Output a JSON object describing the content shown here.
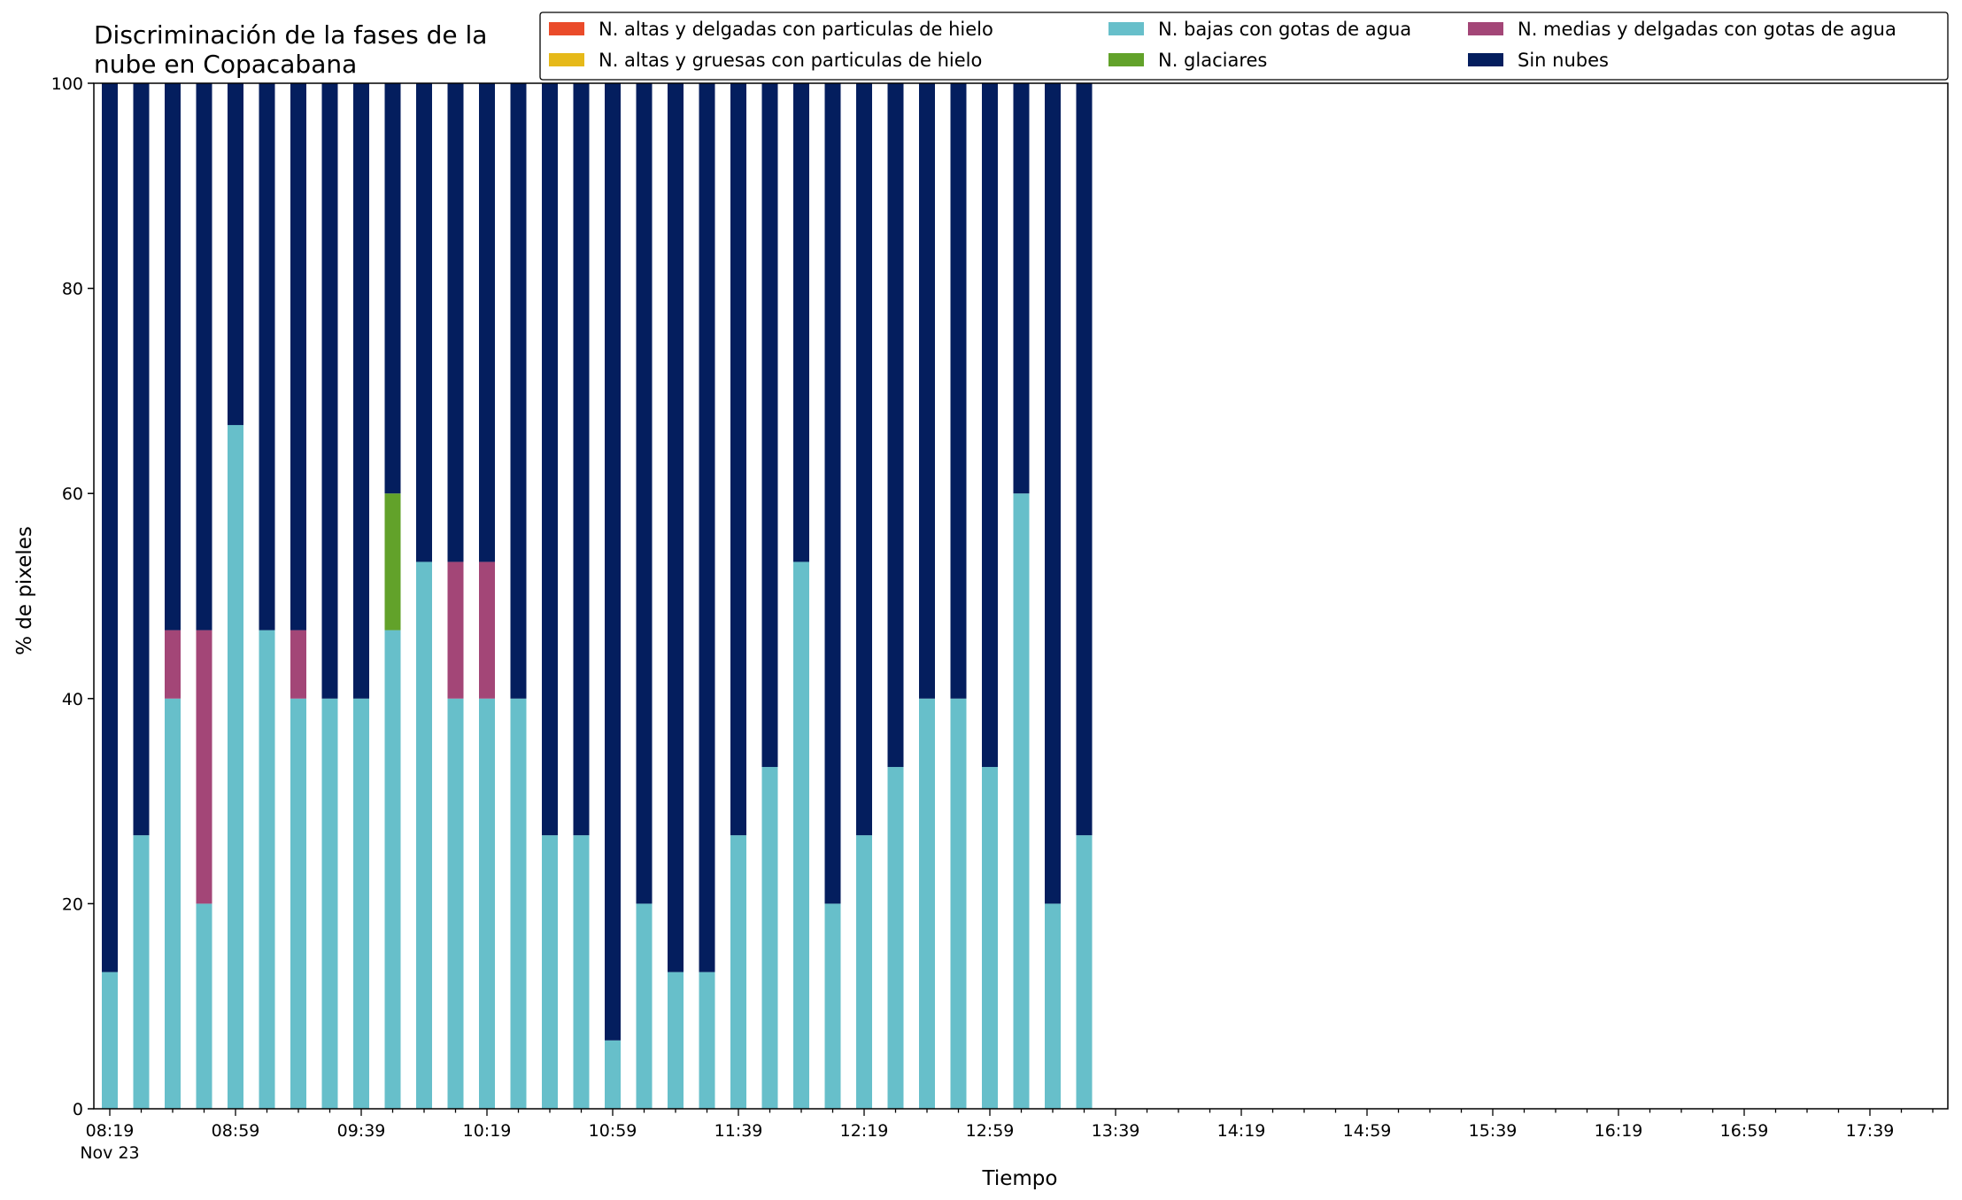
{
  "chart_data": {
    "type": "bar",
    "stacked": true,
    "title_lines": [
      "Discriminación de la fases de la",
      "nube en Copacabana"
    ],
    "xlabel": "Tiempo",
    "ylabel": "% de pixeles",
    "ylim": [
      0,
      100
    ],
    "yticks": [
      0,
      20,
      40,
      60,
      80,
      100
    ],
    "grid": false,
    "legend_position": "top-right",
    "x_start": "08:19",
    "x_interval_minutes": 10,
    "x_slot_count": 59,
    "x_tick_labels": [
      "08:19",
      "08:59",
      "09:39",
      "10:19",
      "10:59",
      "11:39",
      "12:19",
      "12:59",
      "13:39",
      "14:19",
      "14:59",
      "15:39",
      "16:19",
      "16:59",
      "17:39"
    ],
    "x_date_label": "Nov 23",
    "categories": [
      "08:19",
      "08:29",
      "08:39",
      "08:49",
      "08:59",
      "09:09",
      "09:19",
      "09:29",
      "09:39",
      "09:49",
      "09:59",
      "10:09",
      "10:19",
      "10:29",
      "10:39",
      "10:49",
      "10:59",
      "11:09",
      "11:19",
      "11:29",
      "11:39",
      "11:49",
      "11:59",
      "12:09",
      "12:19",
      "12:29",
      "12:39",
      "12:49",
      "12:59",
      "13:09",
      "13:19",
      "13:29"
    ],
    "series": [
      {
        "name": "N. altas y delgadas con particulas de hielo",
        "color": "#ea4b2a",
        "values": [
          0,
          0,
          0,
          0,
          0,
          0,
          0,
          0,
          0,
          0,
          0,
          0,
          0,
          0,
          0,
          0,
          0,
          0,
          0,
          0,
          0,
          0,
          0,
          0,
          0,
          0,
          0,
          0,
          0,
          0,
          0,
          0
        ]
      },
      {
        "name": "N. altas y gruesas con particulas de hielo",
        "color": "#e6b919",
        "values": [
          0,
          0,
          0,
          0,
          0,
          0,
          0,
          0,
          0,
          0,
          0,
          0,
          0,
          0,
          0,
          0,
          0,
          0,
          0,
          0,
          0,
          0,
          0,
          0,
          0,
          0,
          0,
          0,
          0,
          0,
          0,
          0
        ]
      },
      {
        "name": "N. bajas con gotas de agua",
        "color": "#67bfca",
        "values": [
          13.33,
          26.67,
          40,
          20,
          66.67,
          46.67,
          40,
          40,
          40,
          46.67,
          53.33,
          40,
          40,
          40,
          26.67,
          26.67,
          6.67,
          20,
          13.33,
          13.33,
          26.67,
          33.33,
          53.33,
          20,
          26.67,
          33.33,
          40,
          40,
          33.33,
          60,
          20,
          26.67
        ]
      },
      {
        "name": "N. glaciares",
        "color": "#62a22a",
        "values": [
          0,
          0,
          0,
          0,
          0,
          0,
          0,
          0,
          0,
          13.33,
          0,
          0,
          0,
          0,
          0,
          0,
          0,
          0,
          0,
          0,
          0,
          0,
          0,
          0,
          0,
          0,
          0,
          0,
          0,
          0,
          0,
          0
        ]
      },
      {
        "name": "N. medias y delgadas con gotas de agua",
        "color": "#a34677",
        "values": [
          0,
          0,
          6.67,
          26.67,
          0,
          0,
          6.67,
          0,
          0,
          0,
          0,
          13.33,
          13.33,
          0,
          0,
          0,
          0,
          0,
          0,
          0,
          0,
          0,
          0,
          0,
          0,
          0,
          0,
          0,
          0,
          0,
          0,
          0
        ]
      },
      {
        "name": "Sin nubes",
        "color": "#041e5e",
        "values": [
          86.67,
          73.33,
          53.33,
          53.33,
          33.33,
          53.33,
          53.33,
          60,
          60,
          40,
          46.67,
          46.67,
          46.67,
          60,
          73.33,
          73.33,
          93.33,
          80,
          86.67,
          86.67,
          73.33,
          66.67,
          46.67,
          80,
          73.33,
          66.67,
          60,
          60,
          66.67,
          40,
          80,
          73.33
        ]
      }
    ]
  }
}
